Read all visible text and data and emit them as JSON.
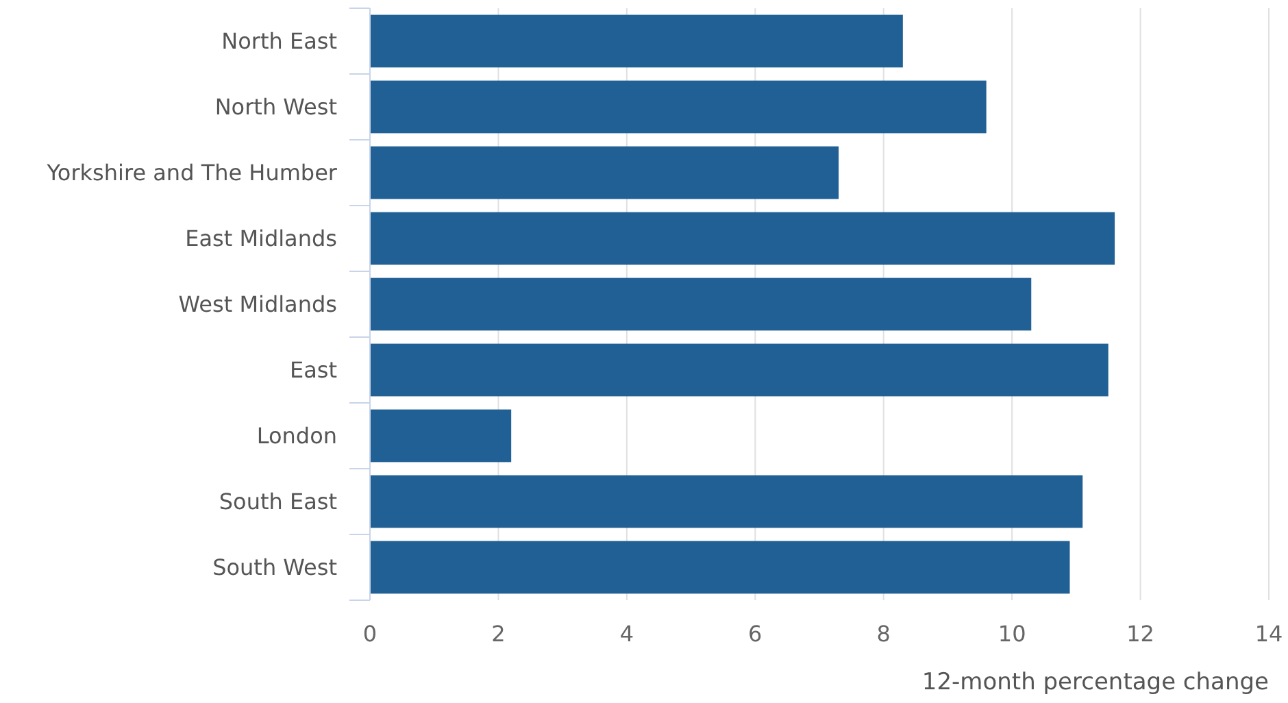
{
  "chart_data": {
    "type": "bar",
    "orientation": "horizontal",
    "xlabel": "12-month percentage change",
    "categories": [
      "North East",
      "North West",
      "Yorkshire and The Humber",
      "East Midlands",
      "West Midlands",
      "East",
      "London",
      "South East",
      "South West"
    ],
    "values": [
      8.3,
      9.6,
      7.3,
      11.6,
      10.3,
      11.5,
      2.2,
      11.1,
      10.9
    ],
    "color": "#206095",
    "xlim": [
      0,
      14
    ],
    "xticks": [
      0,
      2,
      4,
      6,
      8,
      10,
      12,
      14
    ],
    "grid": "x"
  }
}
